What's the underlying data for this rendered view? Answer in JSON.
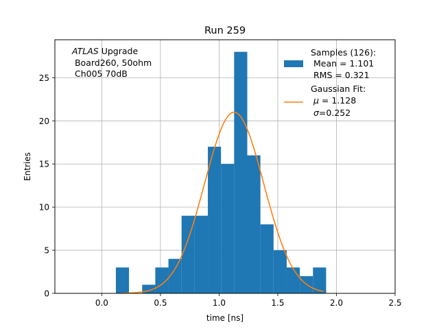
{
  "chart_data": {
    "type": "bar",
    "title": "Run 259",
    "xlabel": "time [ns]",
    "ylabel": "Entries",
    "xlim": [
      -0.4,
      2.5
    ],
    "ylim": [
      0,
      29.4
    ],
    "grid": true,
    "xticks": [
      0.0,
      0.5,
      1.0,
      1.5,
      2.0,
      2.5
    ],
    "xtick_labels": [
      "0.0",
      "0.5",
      "1.0",
      "1.5",
      "2.0",
      "2.5"
    ],
    "yticks": [
      0,
      5,
      10,
      15,
      20,
      25
    ],
    "ytick_labels": [
      "0",
      "5",
      "10",
      "15",
      "20",
      "25"
    ],
    "bin_edges": [
      0.12,
      0.232,
      0.344,
      0.456,
      0.568,
      0.68,
      0.792,
      0.904,
      1.016,
      1.128,
      1.24,
      1.352,
      1.464,
      1.576,
      1.688,
      1.8,
      1.912
    ],
    "counts": [
      3,
      0,
      1,
      3,
      4,
      9,
      9,
      17,
      15,
      28,
      16,
      8,
      5,
      3,
      2,
      3
    ],
    "bar_color": "#1f77b4",
    "fit": {
      "mu": 1.128,
      "sigma": 0.252,
      "amplitude": 21,
      "x_range": [
        0.16,
        1.89
      ],
      "color": "#ff7f0e"
    },
    "annotation": {
      "italic": "ATLAS",
      "rest": " Upgrade",
      "line2": " Board260, 50ohm",
      "line3": " Ch005 70dB"
    },
    "legend": {
      "position": "top-right",
      "samples": {
        "line1": "Samples (126):",
        "line2": " Mean = 1.101",
        "line3": " RMS = 0.321"
      },
      "fit": {
        "line1": "Gaussian Fit:",
        "line2_sym": "μ",
        "line2_rest": " = 1.128",
        "line3_sym": "σ",
        "line3_rest": "=0.252"
      }
    }
  }
}
